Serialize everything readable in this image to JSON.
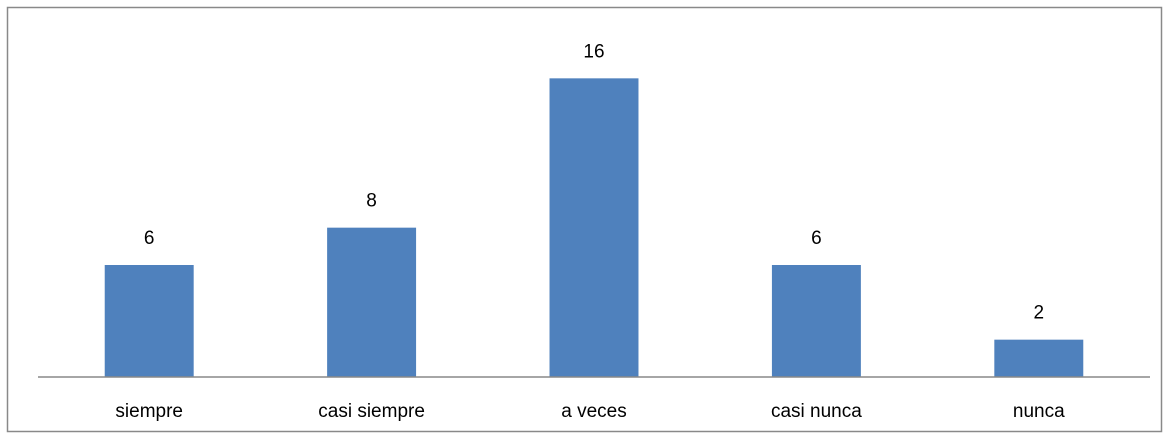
{
  "chart_data": {
    "type": "bar",
    "categories": [
      "siempre",
      "casi siempre",
      "a veces",
      "casi nunca",
      "nunca"
    ],
    "values": [
      6,
      8,
      16,
      6,
      2
    ],
    "color": "#4f81bd",
    "ylim": [
      0,
      18
    ]
  }
}
